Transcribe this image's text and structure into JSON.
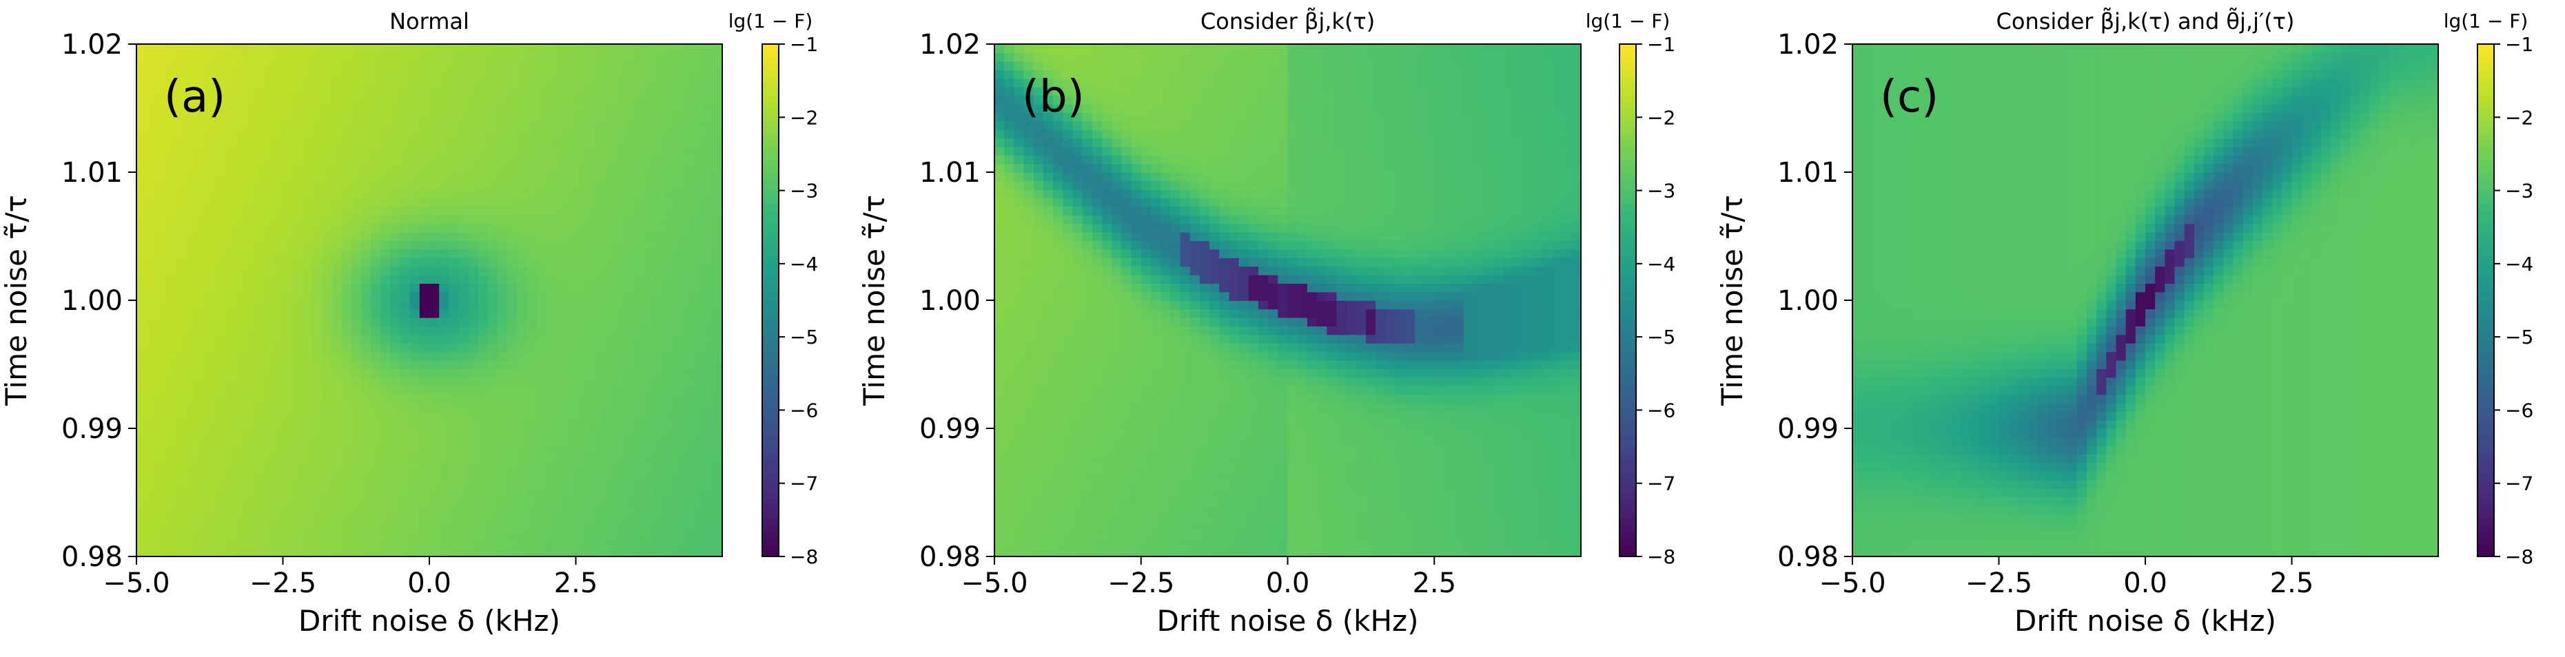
{
  "chart_data": [
    {
      "type": "heatmap",
      "title": "Normal",
      "panel_label": "(a)",
      "xlabel": "Drift noise δ (kHz)",
      "ylabel": "Time noise τ̃/τ",
      "xlim": [
        -5.0,
        5.0
      ],
      "ylim": [
        0.98,
        1.02
      ],
      "x_ticks": [
        "−5.0",
        "−2.5",
        "0.0",
        "2.5"
      ],
      "x_tick_values": [
        -5.0,
        -2.5,
        0.0,
        2.5
      ],
      "y_ticks": [
        "0.98",
        "0.99",
        "1.00",
        "1.01",
        "1.02"
      ],
      "y_tick_values": [
        0.98,
        0.99,
        1.0,
        1.01,
        1.02
      ],
      "colorbar": {
        "label": "lg(1 − F)",
        "range": [
          -8,
          -1
        ],
        "ticks": [
          "−1",
          "−2",
          "−3",
          "−4",
          "−5",
          "−6",
          "−7",
          "−8"
        ],
        "tick_values": [
          -1,
          -2,
          -3,
          -4,
          -5,
          -6,
          -7,
          -8
        ]
      },
      "colormap": "viridis",
      "field": {
        "kind": "point",
        "center": [
          0.0,
          1.0
        ],
        "min_value": -8,
        "background": -2.3,
        "gradient": [
          -0.12,
          12
        ]
      }
    },
    {
      "type": "heatmap",
      "title": "Consider β̃j,k(τ)",
      "panel_label": "(b)",
      "xlabel": "Drift noise δ (kHz)",
      "ylabel": "Time noise τ̃/τ",
      "xlim": [
        -5.0,
        5.0
      ],
      "ylim": [
        0.98,
        1.02
      ],
      "x_ticks": [
        "−5.0",
        "−2.5",
        "0.0",
        "2.5"
      ],
      "x_tick_values": [
        -5.0,
        -2.5,
        0.0,
        2.5
      ],
      "y_ticks": [
        "0.98",
        "0.99",
        "1.00",
        "1.01",
        "1.02"
      ],
      "y_tick_values": [
        0.98,
        0.99,
        1.0,
        1.01,
        1.02
      ],
      "colorbar": {
        "label": "lg(1 − F)",
        "range": [
          -8,
          -1
        ],
        "ticks": [
          "−1",
          "−2",
          "−3",
          "−4",
          "−5",
          "−6",
          "−7",
          "−8"
        ],
        "tick_values": [
          -1,
          -2,
          -3,
          -4,
          -5,
          -6,
          -7,
          -8
        ]
      },
      "colormap": "viridis",
      "field": {
        "kind": "curve",
        "valley": [
          [
            -5.0,
            1.016
          ],
          [
            -2.5,
            1.006
          ],
          [
            -1.0,
            1.0018
          ],
          [
            0.0,
            1.0001
          ],
          [
            1.0,
            0.9987
          ],
          [
            2.0,
            0.9978
          ],
          [
            3.0,
            0.998
          ],
          [
            4.0,
            0.9988
          ],
          [
            5.0,
            1.0
          ]
        ],
        "min_value": -8,
        "min_point": [
          0.2,
          1.0
        ]
      }
    },
    {
      "type": "heatmap",
      "title": "Consider β̃j,k(τ) and θ̃j,j′(τ)",
      "panel_label": "(c)",
      "xlabel": "Drift noise δ (kHz)",
      "ylabel": "Time noise τ̃/τ",
      "xlim": [
        -5.0,
        5.0
      ],
      "ylim": [
        0.98,
        1.02
      ],
      "x_ticks": [
        "−5.0",
        "−2.5",
        "0.0",
        "2.5"
      ],
      "x_tick_values": [
        -5.0,
        -2.5,
        0.0,
        2.5
      ],
      "y_ticks": [
        "0.98",
        "0.99",
        "1.00",
        "1.01",
        "1.02"
      ],
      "y_tick_values": [
        0.98,
        0.99,
        1.0,
        1.01,
        1.02
      ],
      "colorbar": {
        "label": "lg(1 − F)",
        "range": [
          -8,
          -1
        ],
        "ticks": [
          "−1",
          "−2",
          "−3",
          "−4",
          "−5",
          "−6",
          "−7",
          "−8"
        ],
        "tick_values": [
          -1,
          -2,
          -3,
          -4,
          -5,
          -6,
          -7,
          -8
        ]
      },
      "colormap": "viridis",
      "field": {
        "kind": "line",
        "valley": [
          [
            -1.2,
            0.99
          ],
          [
            -0.6,
            0.995
          ],
          [
            0.0,
            1.0
          ],
          [
            0.8,
            1.005
          ],
          [
            1.8,
            1.01
          ],
          [
            3.0,
            1.015
          ],
          [
            4.2,
            1.02
          ]
        ],
        "min_value": -8,
        "min_point": [
          0.0,
          1.0
        ]
      }
    }
  ]
}
